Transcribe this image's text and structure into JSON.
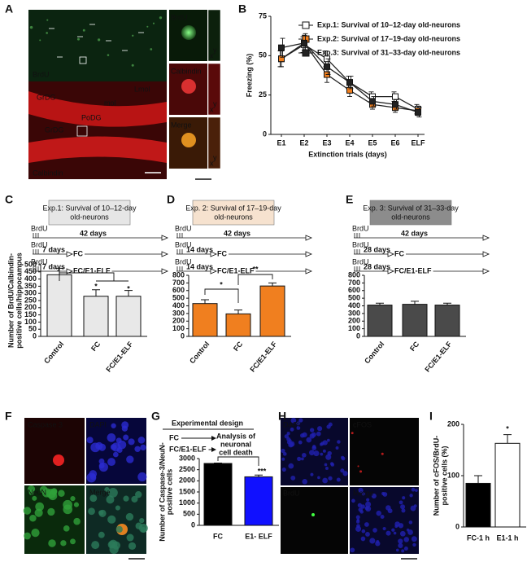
{
  "panel_labels": [
    "A",
    "B",
    "C",
    "D",
    "E",
    "F",
    "G",
    "H",
    "I"
  ],
  "panel_a": {
    "main_labels": [
      "BrdU",
      "Calbindin"
    ],
    "regions": [
      "GrDG",
      "mol",
      "Lmol",
      "PoDG",
      "GrDG"
    ],
    "insets": [
      "BrdU",
      "Calbindin",
      "Merge"
    ],
    "axes": [
      "y",
      "x"
    ]
  },
  "panel_f": {
    "labels": [
      "Caspase 3",
      "DAPI",
      "NeuN",
      "Merge"
    ]
  },
  "panel_h": {
    "labels": [
      "DAPI",
      "cFOS",
      "BrdU",
      "Merge"
    ]
  },
  "designs": [
    {
      "title": [
        "Exp.1: Survival of 10–12-day",
        "old-neurons"
      ],
      "brdu": "BrdU",
      "long": "42 days",
      "short": "7 days",
      "end1": "FC",
      "end2": "FC/E1-ELF"
    },
    {
      "title": [
        "Exp. 2: Survival of 17–19-day",
        "old-neurons"
      ],
      "brdu": "BrdU",
      "long": "42 days",
      "short": "14 days",
      "end1": "FC",
      "end2": "FC/E1-ELF"
    },
    {
      "title": [
        "Exp. 3: Survival of 31–33-day",
        "old-neurons"
      ],
      "brdu": "BrdU",
      "long": "42 days",
      "short": "28 days",
      "end1": "FC",
      "end2": "FC/E1-ELF"
    }
  ],
  "design_g": {
    "title": "Experimental design",
    "rows": [
      "FC",
      "FC/E1-ELF"
    ],
    "result": [
      "Analysis of",
      "neuronal",
      "cell death"
    ]
  },
  "chart_data": [
    {
      "type": "line",
      "categories": [
        "E1",
        "E2",
        "E3",
        "E4",
        "E5",
        "E6",
        "ELF"
      ],
      "ylabel": "Freezing (%)",
      "xlabel": "Extinction trials (days)",
      "ylim": [
        0,
        75
      ],
      "yticks": [
        0,
        25,
        50,
        75
      ],
      "legend": "upper right",
      "series": [
        {
          "name": "Exp.1: Survival of 10–12-day old-neurons",
          "color": "#ffffff",
          "values": [
            48,
            57,
            48,
            33,
            24,
            24,
            16
          ],
          "errors": [
            5,
            5,
            5,
            4,
            3,
            3,
            3
          ]
        },
        {
          "name": "Exp.2: Survival of 17–19-day old-neurons",
          "color": "#f07f1f",
          "values": [
            48,
            58,
            38,
            28,
            19,
            17,
            15
          ],
          "errors": [
            5,
            5,
            5,
            4,
            3,
            3,
            3
          ]
        },
        {
          "name": "Exp.3: Survival of  31–33-day old-neurons",
          "color": "#222222",
          "values": [
            55,
            58,
            43,
            33,
            21,
            19,
            14
          ],
          "errors": [
            6,
            6,
            5,
            4,
            3,
            3,
            3
          ]
        }
      ]
    },
    {
      "type": "bar",
      "categories": [
        "Control",
        "FC",
        "FC/E1-ELF"
      ],
      "values": [
        430,
        280,
        280
      ],
      "errors": [
        45,
        45,
        40
      ],
      "color": "#e8e8e8",
      "ylabel": [
        "Number of BrdU/Calbindin-",
        "positive cells/hippocampus"
      ],
      "ylim": [
        0,
        500
      ],
      "yticks": [
        0,
        50,
        100,
        150,
        200,
        250,
        300,
        350,
        400,
        450,
        500
      ],
      "annotations": [
        "*",
        "*"
      ]
    },
    {
      "type": "bar",
      "categories": [
        "Control",
        "FC",
        "FC/E1-ELF"
      ],
      "values": [
        430,
        295,
        660
      ],
      "errors": [
        50,
        50,
        40
      ],
      "color": "#f07f1f",
      "ylim": [
        0,
        800
      ],
      "yticks": [
        0,
        100,
        200,
        300,
        400,
        500,
        600,
        700,
        800
      ],
      "annotations": [
        "*",
        "**"
      ]
    },
    {
      "type": "bar",
      "categories": [
        "Control",
        "FC",
        "FC/E1-ELF"
      ],
      "values": [
        410,
        420,
        410
      ],
      "errors": [
        25,
        40,
        25
      ],
      "color": "#4a4a4a",
      "ylim": [
        0,
        800
      ],
      "yticks": [
        0,
        100,
        200,
        300,
        400,
        500,
        600,
        700,
        800
      ]
    },
    {
      "type": "bar",
      "categories": [
        "FC",
        "E1- ELF"
      ],
      "values": [
        2780,
        2180
      ],
      "errors": [
        20,
        80
      ],
      "colors": [
        "#000000",
        "#1010ff"
      ],
      "ylabel": [
        "Number of Caspase-3/NeuN-",
        "positive cells"
      ],
      "ylim": [
        0,
        3000
      ],
      "yticks": [
        0,
        500,
        1000,
        1500,
        2000,
        2500,
        3000
      ],
      "annotations": [
        "***"
      ]
    },
    {
      "type": "bar",
      "categories": [
        "FC-1 h",
        "E1-1 h"
      ],
      "values": [
        85,
        163
      ],
      "errors": [
        15,
        17
      ],
      "colors": [
        "#000000",
        "#ffffff"
      ],
      "ylabel": [
        "Number of cFOS/BrdU-",
        "positive cells (%)"
      ],
      "ylim": [
        0,
        200
      ],
      "yticks": [
        0,
        100,
        200
      ],
      "annotations": [
        "*"
      ]
    }
  ]
}
